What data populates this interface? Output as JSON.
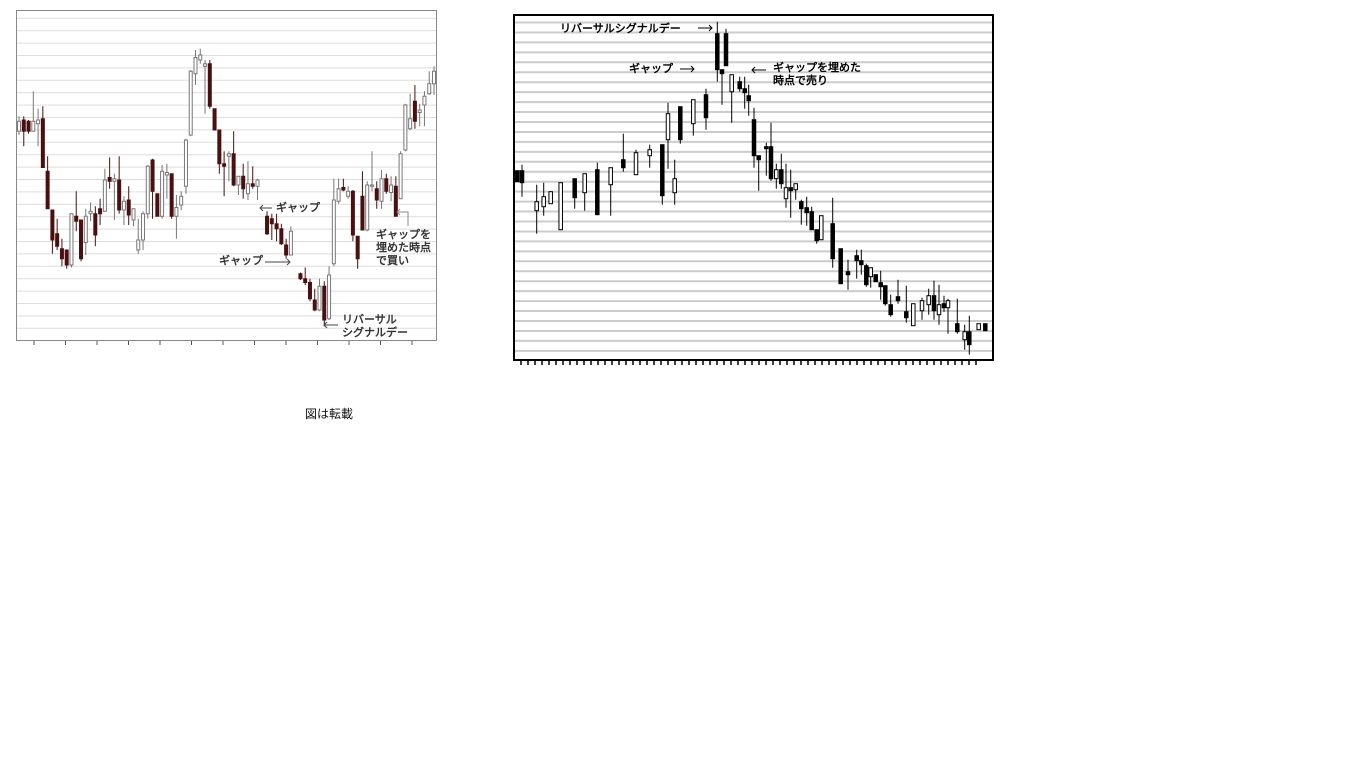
{
  "caption": "図は転載",
  "chart_data": [
    {
      "type": "candlestick",
      "title": "",
      "xlabel": "",
      "ylabel": "",
      "ohlc_format": [
        "open",
        "high",
        "low",
        "close"
      ],
      "ylim": [
        0,
        26.4
      ],
      "grid": true,
      "colors": {
        "down": "#4a1010",
        "up": "#ffffff",
        "outline": "#777777",
        "grid": "#dddddd",
        "frame": "#888888"
      },
      "annotations": {
        "gap_down": "ギャップ",
        "gap_down2": "ギャップ",
        "reversal_line1": "リバーサル",
        "reversal_line2": "シグナルデー",
        "buy_line1": "ギャップを",
        "buy_line2": "埋めた時点",
        "buy_line3": "で買い"
      },
      "candles": [
        [
          16.7,
          17.9,
          16.4,
          17.5
        ],
        [
          17.6,
          17.9,
          15.5,
          16.7
        ],
        [
          17.5,
          17.6,
          16.5,
          16.7
        ],
        [
          16.7,
          19.9,
          16.7,
          17.5
        ],
        [
          17.3,
          18.5,
          15.5,
          17.6
        ],
        [
          17.7,
          18.7,
          13.8,
          13.8
        ],
        [
          13.5,
          14.7,
          10.5,
          10.5
        ],
        [
          10.4,
          10.4,
          6.9,
          8.0
        ],
        [
          8.5,
          9.7,
          7.2,
          7.5
        ],
        [
          7.3,
          8.1,
          5.9,
          6.5
        ],
        [
          7.2,
          7.2,
          5.7,
          6.0
        ],
        [
          6.0,
          10.1,
          5.8,
          10.1
        ],
        [
          9.9,
          11.9,
          8.7,
          9.5
        ],
        [
          9.6,
          9.6,
          6.3,
          6.5
        ],
        [
          7.8,
          10.5,
          6.8,
          9.9
        ],
        [
          10.1,
          11.0,
          9.5,
          10.3
        ],
        [
          10.1,
          10.7,
          7.5,
          8.4
        ],
        [
          10.5,
          11.3,
          9.2,
          10.1
        ],
        [
          10.3,
          13.7,
          10.3,
          12.8
        ],
        [
          13.0,
          14.6,
          12.1,
          12.7
        ],
        [
          12.7,
          13.3,
          9.6,
          12.9
        ],
        [
          12.8,
          14.7,
          10.1,
          10.4
        ],
        [
          10.4,
          11.5,
          9.2,
          11.1
        ],
        [
          11.2,
          12.3,
          9.2,
          10.0
        ],
        [
          9.6,
          10.5,
          9.1,
          10.5
        ],
        [
          7.2,
          9.7,
          6.9,
          8.0
        ],
        [
          8.0,
          10.3,
          7.2,
          10.1
        ],
        [
          10.1,
          14.0,
          9.7,
          13.9
        ],
        [
          14.4,
          14.5,
          9.7,
          11.9
        ],
        [
          11.7,
          11.7,
          9.9,
          9.9
        ],
        [
          9.9,
          14.0,
          9.7,
          13.5
        ],
        [
          13.2,
          14.1,
          11.3,
          13.4
        ],
        [
          13.3,
          13.3,
          9.7,
          9.9
        ],
        [
          9.9,
          11.6,
          8.1,
          10.6
        ],
        [
          10.8,
          11.9,
          10.4,
          11.5
        ],
        [
          12.3,
          16.1,
          11.7,
          16.0
        ],
        [
          16.4,
          21.6,
          16.3,
          21.5
        ],
        [
          21.3,
          23.2,
          20.4,
          22.6
        ],
        [
          22.4,
          23.3,
          22.1,
          22.8
        ],
        [
          21.9,
          22.4,
          18.1,
          22.1
        ],
        [
          22.1,
          22.4,
          18.5,
          18.7
        ],
        [
          18.5,
          18.5,
          16.8,
          16.8
        ],
        [
          16.8,
          16.8,
          13.3,
          14.1
        ],
        [
          14.1,
          15.1,
          11.5,
          13.9
        ],
        [
          14.7,
          15.1,
          12.7,
          14.9
        ],
        [
          14.9,
          16.7,
          12.3,
          12.4
        ],
        [
          12.4,
          13.1,
          11.6,
          13.1
        ],
        [
          13.1,
          14.1,
          11.3,
          12.1
        ],
        [
          11.7,
          14.3,
          11.2,
          12.5
        ],
        [
          12.5,
          13.9,
          12.1,
          12.3
        ],
        [
          12.3,
          12.9,
          11.2,
          12.8
        ],
        null,
        [
          9.9,
          10.3,
          8.4,
          8.5
        ],
        [
          9.7,
          10.1,
          8.0,
          9.3
        ],
        [
          9.3,
          10.1,
          7.9,
          8.9
        ],
        [
          8.9,
          9.3,
          7.6,
          7.7
        ],
        [
          7.6,
          8.1,
          6.5,
          6.8
        ],
        [
          6.8,
          9.1,
          6.8,
          8.7
        ],
        null,
        [
          5.3,
          5.4,
          4.8,
          4.9
        ],
        [
          4.9,
          5.8,
          4.4,
          4.6
        ],
        [
          4.6,
          4.9,
          3.1,
          3.3
        ],
        [
          3.2,
          4.1,
          2.3,
          2.4
        ],
        [
          2.4,
          4.9,
          2.3,
          4.3
        ],
        [
          4.3,
          4.7,
          1.1,
          1.6
        ],
        [
          1.7,
          5.9,
          1.6,
          5.2
        ],
        [
          6.1,
          12.9,
          5.9,
          11.2
        ],
        [
          11.1,
          12.9,
          10.9,
          12.1
        ],
        [
          12.2,
          12.9,
          11.9,
          12.0
        ],
        [
          11.5,
          12.3,
          11.3,
          11.9
        ],
        [
          11.9,
          12.0,
          7.9,
          8.4
        ],
        [
          8.3,
          8.3,
          5.7,
          6.5
        ],
        [
          11.5,
          13.5,
          8.8,
          8.8
        ],
        [
          8.8,
          12.7,
          8.7,
          12.4
        ],
        [
          12.3,
          15.1,
          11.9,
          12.4
        ],
        [
          12.1,
          12.7,
          10.5,
          11.2
        ],
        [
          11.1,
          13.6,
          10.5,
          12.9
        ],
        [
          12.9,
          13.3,
          11.7,
          11.9
        ],
        [
          11.8,
          13.1,
          11.1,
          12.4
        ],
        [
          12.3,
          13.1,
          9.9,
          9.9
        ],
        [
          11.3,
          15.1,
          11.3,
          14.9
        ],
        [
          15.2,
          18.9,
          15.1,
          18.8
        ],
        [
          16.9,
          19.7,
          16.8,
          17.7
        ],
        [
          19.1,
          20.4,
          16.9,
          17.5
        ],
        [
          18.2,
          18.9,
          17.1,
          18.4
        ],
        [
          18.8,
          19.9,
          17.1,
          19.5
        ],
        [
          19.7,
          21.5,
          19.6,
          20.5
        ],
        [
          20.5,
          21.9,
          19.6,
          21.5
        ]
      ]
    },
    {
      "type": "candlestick",
      "title": "",
      "xlabel": "",
      "ylabel": "",
      "ohlc_format": [
        "open",
        "high",
        "low",
        "close"
      ],
      "ylim": [
        0,
        34.2
      ],
      "grid": true,
      "colors": {
        "down": "#000000",
        "up": "#ffffff",
        "outline": "#000000",
        "grid": "#cccccc",
        "frame": "#000000"
      },
      "annotations": {
        "reversal": "リバーサルシグナルデー",
        "gap": "ギャップ",
        "sell_line1": "ギャップを埋めた",
        "sell_line2": "時点で売り"
      },
      "candles": [
        [
          18.6,
          18.6,
          17.5,
          17.5
        ],
        [
          18.6,
          19.2,
          16.0,
          17.4
        ],
        [
          14.6,
          17.2,
          12.3,
          15.5
        ],
        [
          15.0,
          17.4,
          14.1,
          16.0
        ],
        [
          15.3,
          16.5,
          15.3,
          16.5
        ],
        [
          12.7,
          17.4,
          12.7,
          17.4
        ],
        [
          17.8,
          17.8,
          14.8,
          15.9
        ],
        [
          16.4,
          18.3,
          14.6,
          18.3
        ],
        [
          18.7,
          19.4,
          14.2,
          14.2
        ],
        [
          17.2,
          18.9,
          14.1,
          18.9
        ],
        [
          19.7,
          22.3,
          18.5,
          18.9
        ],
        [
          18.2,
          20.7,
          18.2,
          20.4
        ],
        [
          20.1,
          21.2,
          18.9,
          20.7
        ],
        [
          21.2,
          21.2,
          15.2,
          16.1
        ],
        [
          21.7,
          25.4,
          18.8,
          24.3
        ],
        [
          16.4,
          19.7,
          15.2,
          17.8
        ],
        [
          25.0,
          25.0,
          21.3,
          21.7
        ],
        [
          23.3,
          25.7,
          22.1,
          25.7
        ],
        [
          26.2,
          26.8,
          22.7,
          23.9
        ],
        [
          32.3,
          33.5,
          27.5,
          28.7
        ],
        [
          28.7,
          28.7,
          25.2,
          28.3
        ],
        [
          32.3,
          32.8,
          29.1,
          29.1
        ],
        [
          26.5,
          28.2,
          23.4,
          28.2
        ],
        [
          27.5,
          28.0,
          26.5,
          26.8
        ],
        [
          26.8,
          28.0,
          24.8,
          26.4
        ],
        [
          26.1,
          27.2,
          24.1,
          25.6
        ],
        [
          23.7,
          24.9,
          18.9,
          20.1
        ],
        [
          20.1,
          20.1,
          16.6,
          19.7
        ],
        [
          21.0,
          21.4,
          18.1,
          20.8
        ],
        [
          21.0,
          23.4,
          17.6,
          17.8
        ],
        [
          17.8,
          19.3,
          16.8,
          18.7
        ],
        [
          18.7,
          20.3,
          16.8,
          17.3
        ],
        [
          15.8,
          19.3,
          14.9,
          16.9
        ],
        [
          16.9,
          18.7,
          13.9,
          16.6
        ],
        [
          16.7,
          17.3,
          15.7,
          17.3
        ],
        [
          15.5,
          15.7,
          13.2,
          14.8
        ],
        [
          14.9,
          16.0,
          13.1,
          14.4
        ],
        [
          14.5,
          15.0,
          12.7,
          12.7
        ],
        [
          12.7,
          12.7,
          11.3,
          11.6
        ],
        [
          11.7,
          14.1,
          11.7,
          14.1
        ],
        [
          13.3,
          15.9,
          8.9,
          9.8
        ],
        [
          10.8,
          10.8,
          7.3,
          7.3
        ],
        [
          8.5,
          9.7,
          6.7,
          8.2
        ],
        [
          10.1,
          10.7,
          7.8,
          9.6
        ],
        [
          9.6,
          10.7,
          8.2,
          9.2
        ],
        [
          9.1,
          9.3,
          7.0,
          7.2
        ],
        [
          8.0,
          8.9,
          6.9,
          8.9
        ],
        [
          8.2,
          8.2,
          7.5,
          7.5
        ],
        [
          7.4,
          8.6,
          5.7,
          7.0
        ],
        [
          7.1,
          7.1,
          5.1,
          5.3
        ],
        [
          5.2,
          6.2,
          4.0,
          4.2
        ],
        [
          6.0,
          7.7,
          5.3,
          5.6
        ],
        [
          4.5,
          7.1,
          3.4,
          3.9
        ],
        [
          3.1,
          5.3,
          3.1,
          5.3
        ],
        [
          4.6,
          5.9,
          3.7,
          5.6
        ],
        [
          5.2,
          6.8,
          4.2,
          6.1
        ],
        [
          6.1,
          7.6,
          3.7,
          4.6
        ],
        [
          4.2,
          7.2,
          3.2,
          5.2
        ],
        [
          5.3,
          6.1,
          4.5,
          4.9
        ],
        [
          4.9,
          5.8,
          2.3,
          5.6
        ],
        [
          3.3,
          5.8,
          2.3,
          2.5
        ],
        [
          1.7,
          3.2,
          0.7,
          2.5
        ],
        [
          2.5,
          4.1,
          0.2,
          1.2
        ],
        [
          2.7,
          3.3,
          2.7,
          3.3
        ],
        [
          3.3,
          3.3,
          2.6,
          2.6
        ]
      ]
    }
  ]
}
